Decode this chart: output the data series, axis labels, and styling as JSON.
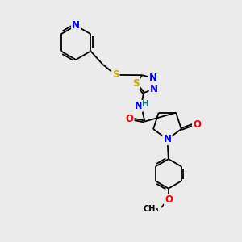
{
  "bg_color": "#ebebeb",
  "bond_color": "#000000",
  "atom_colors": {
    "N": "#0000ff",
    "O": "#ff0000",
    "S": "#ccaa00",
    "H_label": "#008080",
    "C": "#000000"
  },
  "font_size_atom": 8.5,
  "font_size_small": 7.0
}
